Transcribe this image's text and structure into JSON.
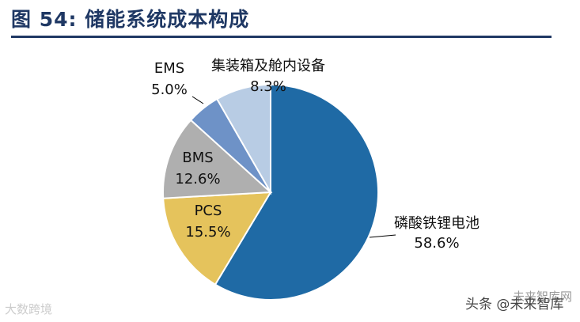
{
  "header": {
    "title": "图 54:  储能系统成本构成"
  },
  "chart_data": {
    "type": "pie",
    "title": "图 54:  储能系统成本构成",
    "slices": [
      {
        "label": "磷酸铁锂电池",
        "value": 58.6,
        "value_label": "58.6%",
        "color": "#1f6aa5"
      },
      {
        "label": "PCS",
        "value": 15.5,
        "value_label": "15.5%",
        "color": "#e5c35c"
      },
      {
        "label": "BMS",
        "value": 12.6,
        "value_label": "12.6%",
        "color": "#afafaf"
      },
      {
        "label": "EMS",
        "value": 5.0,
        "value_label": "5.0%",
        "color": "#6e92c7"
      },
      {
        "label": "集装箱及舱内设备",
        "value": 8.3,
        "value_label": "8.3%",
        "color": "#b8cce4"
      }
    ]
  },
  "watermarks": {
    "bottom_left": "大数跨境",
    "bottom_right": "头条 @未来智库",
    "bottom_right_overlay": "未来智库网"
  }
}
